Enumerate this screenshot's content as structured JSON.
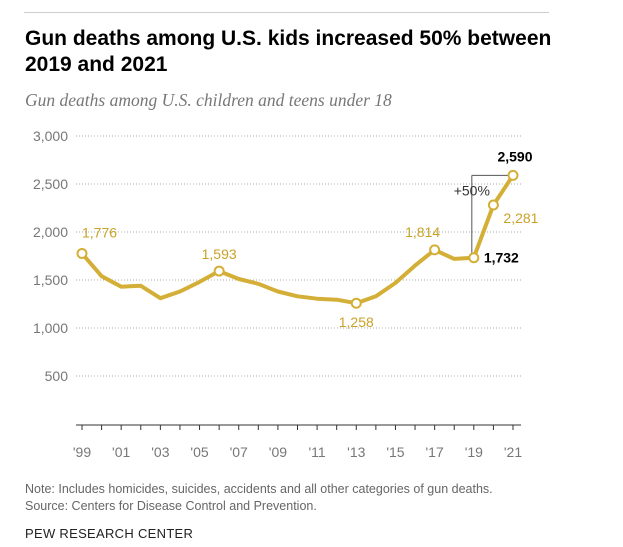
{
  "header": {
    "title": "Gun deaths among U.S. kids increased 50% between 2019 and 2021",
    "subtitle": "Gun deaths among U.S. children and teens under 18"
  },
  "chart_data": {
    "type": "line",
    "title": "Gun deaths among U.S. kids increased 50% between 2019 and 2021",
    "subtitle": "Gun deaths among U.S. children and teens under 18",
    "xlabel": "",
    "ylabel": "",
    "x": [
      1999,
      2000,
      2001,
      2002,
      2003,
      2004,
      2005,
      2006,
      2007,
      2008,
      2009,
      2010,
      2011,
      2012,
      2013,
      2014,
      2015,
      2016,
      2017,
      2018,
      2019,
      2020,
      2021
    ],
    "series": [
      {
        "name": "Gun deaths",
        "values": [
          1776,
          1540,
          1430,
          1440,
          1310,
          1380,
          1480,
          1593,
          1510,
          1460,
          1380,
          1330,
          1305,
          1295,
          1258,
          1330,
          1470,
          1650,
          1814,
          1720,
          1732,
          2281,
          2590
        ]
      }
    ],
    "ylim": [
      0,
      3000
    ],
    "yticks": [
      500,
      1000,
      1500,
      2000,
      2500,
      3000
    ],
    "ytick_labels": [
      "500",
      "1,000",
      "1,500",
      "2,000",
      "2,500",
      "3,000"
    ],
    "xtick_years": [
      1999,
      2001,
      2003,
      2005,
      2007,
      2009,
      2011,
      2013,
      2015,
      2017,
      2019,
      2021
    ],
    "xtick_labels": [
      "'99",
      "'01",
      "'03",
      "'05",
      "'07",
      "'09",
      "'11",
      "'13",
      "'15",
      "'17",
      "'19",
      "'21"
    ],
    "annotations": [
      {
        "year": 1999,
        "value": 1776,
        "label": "1,776"
      },
      {
        "year": 2006,
        "value": 1593,
        "label": "1,593"
      },
      {
        "year": 2013,
        "value": 1258,
        "label": "1,258"
      },
      {
        "year": 2017,
        "value": 1814,
        "label": "1,814"
      },
      {
        "year": 2019,
        "value": 1732,
        "label": "1,732"
      },
      {
        "year": 2020,
        "value": 2281,
        "label": "2,281"
      },
      {
        "year": 2021,
        "value": 2590,
        "label": "2,590"
      }
    ],
    "change_label": "+50%",
    "grid": true,
    "colors": {
      "line": "#d4af37",
      "label": "#c9a227",
      "emphasis": "#000000",
      "grid": "#aaaaaa",
      "tick_text": "#777777"
    }
  },
  "footer": {
    "note": "Note: Includes homicides, suicides, accidents and all other categories of gun deaths.",
    "source": "Source: Centers for Disease Control and Prevention.",
    "brand": "PEW RESEARCH CENTER"
  }
}
